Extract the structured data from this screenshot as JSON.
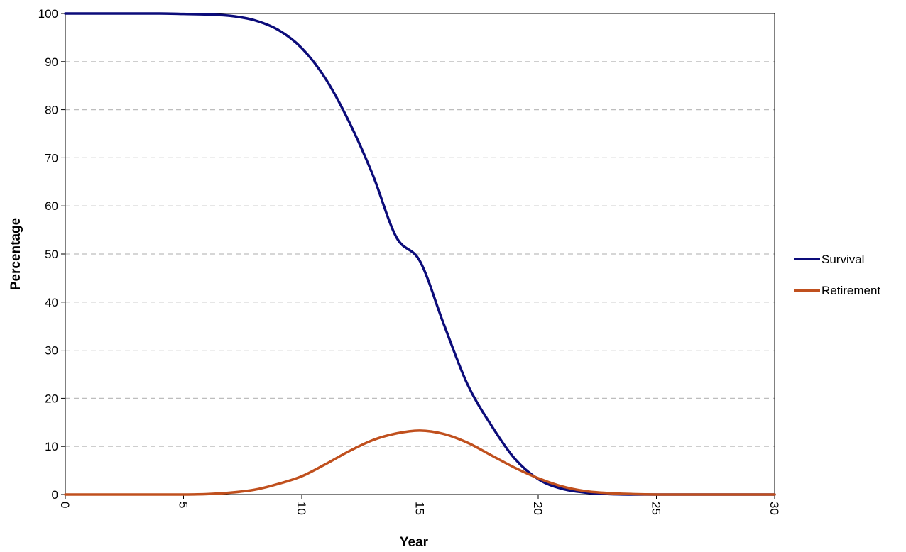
{
  "chart_data": {
    "type": "line",
    "title": "",
    "xlabel": "Year",
    "ylabel": "Percentage",
    "xlim": [
      0,
      30
    ],
    "ylim": [
      0,
      100
    ],
    "x_ticks": [
      "0",
      "5",
      "10",
      "15",
      "20",
      "25",
      "30"
    ],
    "y_ticks": [
      "0",
      "10",
      "20",
      "30",
      "40",
      "50",
      "60",
      "70",
      "80",
      "90",
      "100"
    ],
    "grid": "horizontal dashed",
    "legend_position": "right",
    "x": [
      0,
      1,
      2,
      3,
      4,
      5,
      6,
      7,
      8,
      9,
      10,
      11,
      12,
      13,
      14,
      15,
      16,
      17,
      18,
      19,
      20,
      21,
      22,
      23,
      24,
      25,
      26,
      27,
      28,
      29,
      30
    ],
    "series": [
      {
        "name": "Survival",
        "color": "#0c0c7a",
        "values": [
          100,
          100,
          100,
          100,
          100,
          99.9,
          99.8,
          99.5,
          98.6,
          96.6,
          92.8,
          86.5,
          77.5,
          66.5,
          53.5,
          48.5,
          35.5,
          23.0,
          14.5,
          7.5,
          3.2,
          1.2,
          0.4,
          0.1,
          0,
          0,
          0,
          0,
          0,
          0,
          0
        ]
      },
      {
        "name": "Retirement",
        "color": "#c0501e",
        "values": [
          0,
          0,
          0,
          0,
          0,
          0,
          0.1,
          0.4,
          1.0,
          2.2,
          3.8,
          6.3,
          9.0,
          11.3,
          12.7,
          13.3,
          12.6,
          10.8,
          8.2,
          5.6,
          3.4,
          1.7,
          0.7,
          0.3,
          0.1,
          0,
          0,
          0,
          0,
          0,
          0
        ]
      }
    ]
  }
}
